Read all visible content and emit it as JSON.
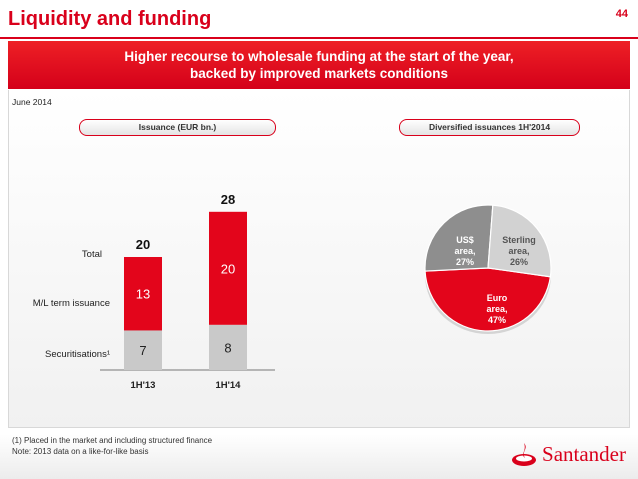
{
  "slide": {
    "title": "Liquidity and funding",
    "page_number": "44",
    "headline_line1": "Higher recourse to wholesale funding at the start of the year,",
    "headline_line2": "backed by improved markets conditions",
    "as_of": "June 2014",
    "issuance_header": "Issuance (EUR bn.)",
    "diversified_header": "Diversified issuances 1H'2014",
    "row_labels": {
      "total": "Total",
      "ml_term": "M/L term issuance",
      "securitisations": "Securitisations¹"
    },
    "footnote_1": "(1)  Placed in the market and including structured finance",
    "footnote_2": "Note: 2013 data on a like-for-like basis",
    "brand": "Santander"
  },
  "colors": {
    "brand_red": "#d9001b",
    "grey": "#cfcfcf",
    "light_grey": "#dcdcdc"
  },
  "chart_data": [
    {
      "type": "bar",
      "stacked": true,
      "title": "Issuance (EUR bn.)",
      "categories": [
        "1H'13",
        "1H'14"
      ],
      "series": [
        {
          "name": "Securitisations¹",
          "values": [
            7,
            8
          ],
          "color": "#c9c9c9"
        },
        {
          "name": "M/L term issuance",
          "values": [
            13,
            20
          ],
          "color": "#e3051b"
        }
      ],
      "totals": [
        20,
        28
      ],
      "ylim": [
        0,
        30
      ]
    },
    {
      "type": "pie",
      "title": "Diversified issuances 1H'2014",
      "slices": [
        {
          "label_line1": "Euro",
          "label_line2": "area,",
          "value_label": "47%",
          "value": 47,
          "color": "#e3051b",
          "text_color": "#ffffff"
        },
        {
          "label_line1": "US$",
          "label_line2": "area,",
          "value_label": "27%",
          "value": 27,
          "color": "#8e8e8e",
          "text_color": "#ffffff"
        },
        {
          "label_line1": "Sterling",
          "label_line2": "area,",
          "value_label": "26%",
          "value": 26,
          "color": "#d2d2d2",
          "text_color": "#555555"
        }
      ]
    }
  ]
}
